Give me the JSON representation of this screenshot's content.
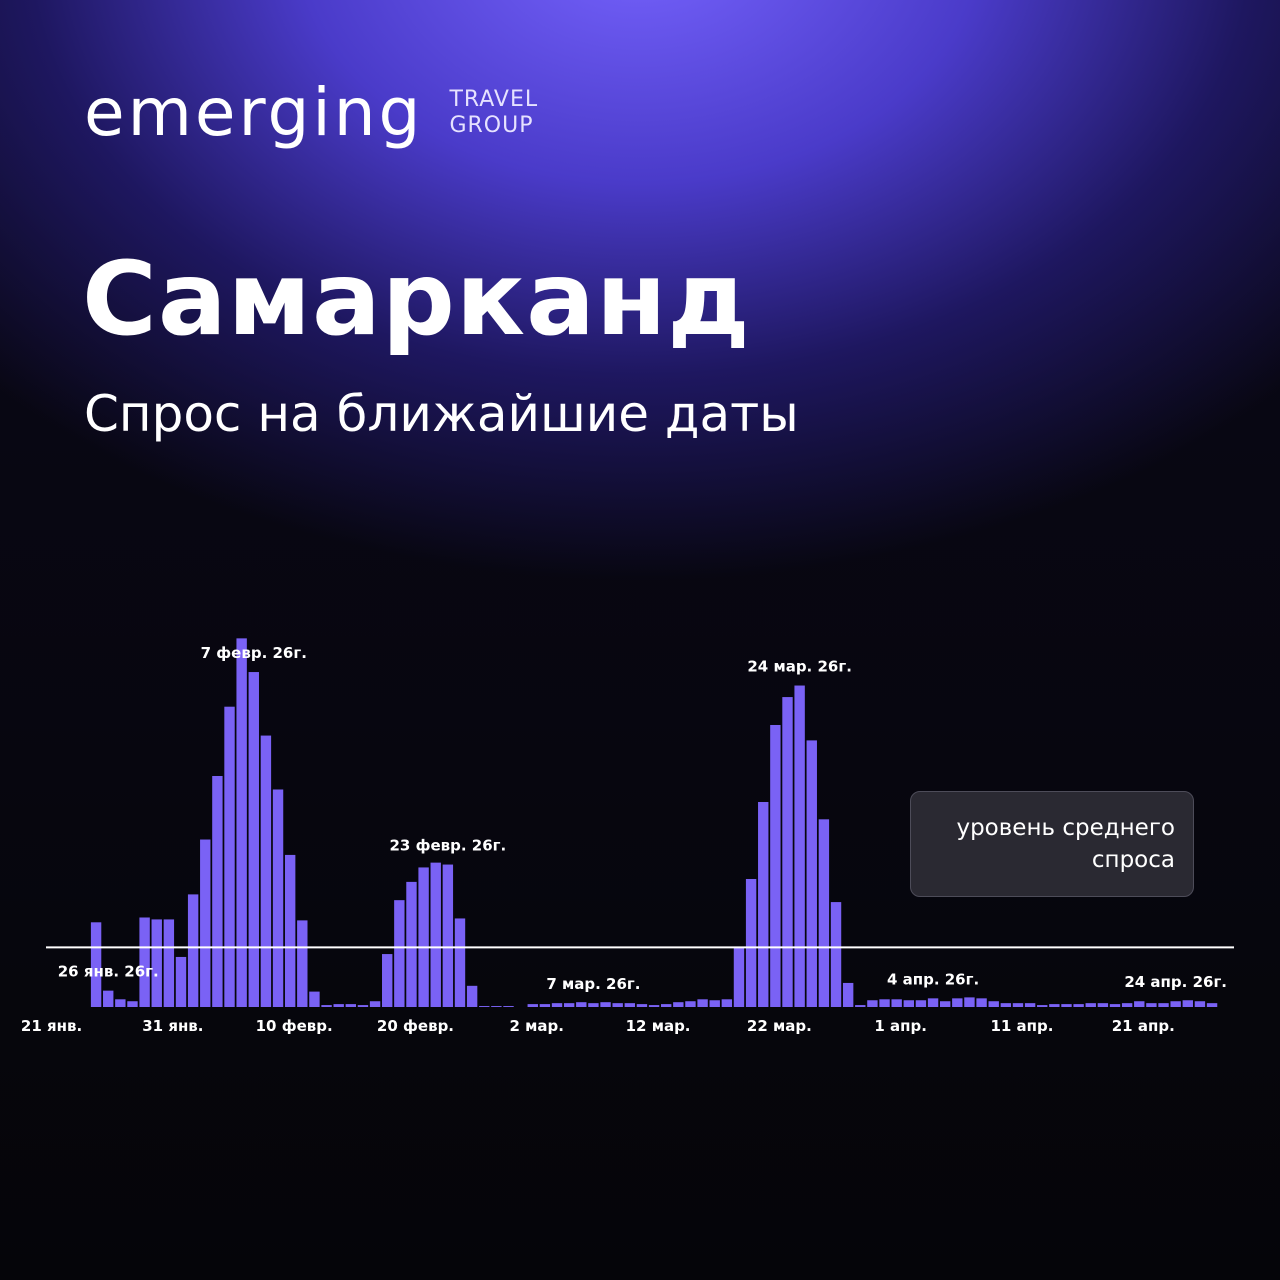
{
  "brand": {
    "logo_word": "emerging",
    "logo_sub_line1": "TRAVEL",
    "logo_sub_line2": "GROUP"
  },
  "header": {
    "title": "Самарканд",
    "subtitle": "Спрос на ближайшие даты"
  },
  "legend": {
    "line1": "уровень среднего",
    "line2": "спроса"
  },
  "colors": {
    "bar": "#7a62f5",
    "average_line": "#ffffff",
    "text": "#ffffff"
  },
  "chart_data": {
    "type": "bar",
    "start_date": "21 янв.",
    "x_tick_labels": [
      "21 янв.",
      "31 янв.",
      "10 февр.",
      "20 февр.",
      "2 мар.",
      "12 мар.",
      "22 мар.",
      "1 апр.",
      "11 апр.",
      "21 апр."
    ],
    "x_tick_day_index": [
      0,
      10,
      20,
      30,
      40,
      50,
      60,
      70,
      80,
      90
    ],
    "values": [
      0,
      0,
      0,
      0,
      88,
      17,
      8,
      6,
      93,
      91,
      91,
      52,
      117,
      174,
      240,
      312,
      383,
      348,
      282,
      226,
      158,
      90,
      16,
      2,
      3,
      3,
      2,
      6,
      55,
      111,
      130,
      145,
      150,
      148,
      92,
      22,
      1,
      1,
      1,
      0,
      3,
      3,
      4,
      4,
      5,
      4,
      5,
      4,
      4,
      3,
      2,
      3,
      5,
      6,
      8,
      7,
      8,
      62,
      133,
      213,
      293,
      322,
      334,
      277,
      195,
      109,
      25,
      2,
      7,
      8,
      8,
      7,
      7,
      9,
      6,
      9,
      10,
      9,
      6,
      4,
      4,
      4,
      2,
      3,
      3,
      3,
      4,
      4,
      3,
      4,
      6,
      4,
      4,
      6,
      7,
      6,
      4,
      0,
      0,
      0
    ],
    "ylim": [
      0,
      400
    ],
    "average_level": 62,
    "annotations": [
      {
        "label": "26 янв. 26г.",
        "index": 5
      },
      {
        "label": "7 февр. 26г.",
        "index": 17
      },
      {
        "label": "23 февр. 26г.",
        "index": 33
      },
      {
        "label": "7 мар. 26г.",
        "index": 45
      },
      {
        "label": "24 мар. 26г.",
        "index": 62
      },
      {
        "label": "4 апр. 26г.",
        "index": 73
      },
      {
        "label": "24 апр. 26г.",
        "index": 93
      }
    ],
    "grid": false,
    "legend_position": "right"
  }
}
